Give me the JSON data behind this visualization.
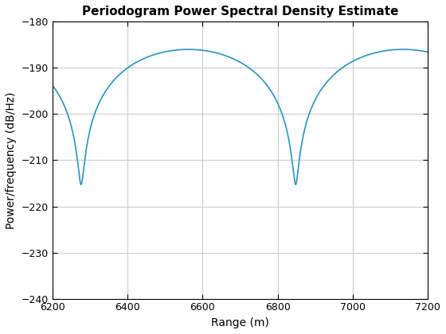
{
  "title": "Periodogram Power Spectral Density Estimate",
  "xlabel": "Range (m)",
  "ylabel": "Power/frequency (dB/Hz)",
  "xlim": [
    6200,
    7200
  ],
  "ylim": [
    -240,
    -180
  ],
  "xticks": [
    6200,
    6400,
    6600,
    6800,
    7000,
    7200
  ],
  "yticks": [
    -240,
    -230,
    -220,
    -210,
    -200,
    -190,
    -180
  ],
  "line_color": "#2196c8",
  "line_width": 1.2,
  "background_color": "#ffffff",
  "grid_color": "#cccccc",
  "title_fontsize": 11,
  "label_fontsize": 10
}
